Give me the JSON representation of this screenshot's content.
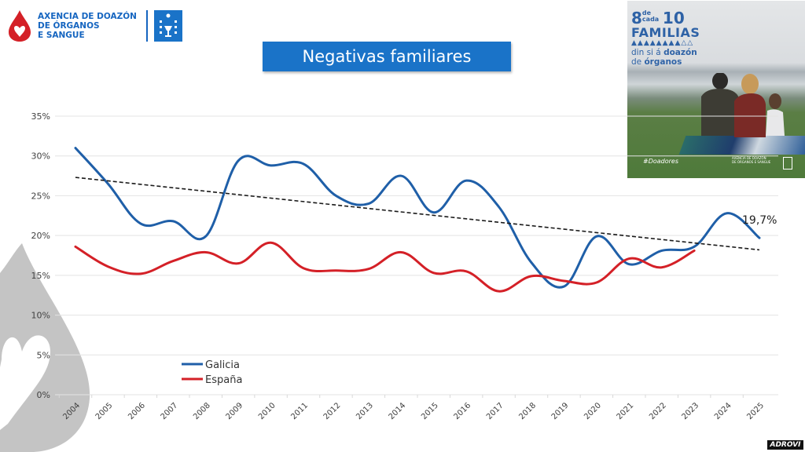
{
  "header": {
    "org_name_lines": [
      "AXENCIA DE DOAZÓN",
      "DE ÓRGANOS",
      "E SANGUE"
    ],
    "title": "Negativas familiares"
  },
  "poster": {
    "headline_num1": "8",
    "headline_small": "de cada",
    "headline_num2": "10",
    "headline_word": "FAMILIAS",
    "people_icons": "👤👤👤👤👤👤👤👤👤👤",
    "line3_prefix": "din si á ",
    "line3_bold": "doazón",
    "line4_prefix": "de ",
    "line4_bold": "órganos",
    "hashtag": "#Doadores",
    "footer_org": "AXENCIA DE DOAZÓN DE ÓRGANOS E SANGUE"
  },
  "watermark": {
    "brand": "ADROVI"
  },
  "colors": {
    "galicia": "#1f5fa8",
    "espana": "#d42027",
    "trend": "#1a1a1a",
    "title_bg": "#1a73c8",
    "grid": "#e3e3e3"
  },
  "chart_data": {
    "type": "line",
    "title": "Negativas familiares",
    "xlabel": "",
    "ylabel": "",
    "x": [
      "2004",
      "2005",
      "2006",
      "2007",
      "2008",
      "2009",
      "2010",
      "2011",
      "2012",
      "2013",
      "2014",
      "2015",
      "2016",
      "2017",
      "2018",
      "2019",
      "2020",
      "2021",
      "2022",
      "2023",
      "2024",
      "2025"
    ],
    "ylim": [
      0,
      35
    ],
    "yticks": [
      0,
      5,
      10,
      15,
      20,
      25,
      30,
      35
    ],
    "ytick_labels": [
      "0%",
      "5%",
      "10%",
      "15%",
      "20%",
      "25%",
      "30%",
      "35%"
    ],
    "grid": true,
    "legend_position": "bottom-left",
    "series": [
      {
        "name": "Galicia",
        "values": [
          31.0,
          26.5,
          21.5,
          21.8,
          19.9,
          29.4,
          28.8,
          29.0,
          25.0,
          24.0,
          27.5,
          22.9,
          26.9,
          23.6,
          16.6,
          13.6,
          19.9,
          16.4,
          18.1,
          18.6,
          22.8,
          19.7
        ]
      },
      {
        "name": "España",
        "values": [
          18.6,
          16.1,
          15.2,
          16.8,
          17.9,
          16.5,
          19.1,
          15.9,
          15.6,
          15.8,
          17.9,
          15.3,
          15.5,
          13.0,
          14.9,
          14.3,
          14.1,
          17.1,
          16.0,
          18.1,
          null,
          null
        ]
      }
    ],
    "trendline": {
      "series": "Galicia",
      "style": "dashed",
      "start": {
        "x": "2004",
        "y": 27.3
      },
      "end": {
        "x": "2025",
        "y": 18.2
      }
    },
    "annotations": [
      {
        "x": "2025",
        "y": 19.7,
        "text": "19,7%"
      }
    ]
  }
}
